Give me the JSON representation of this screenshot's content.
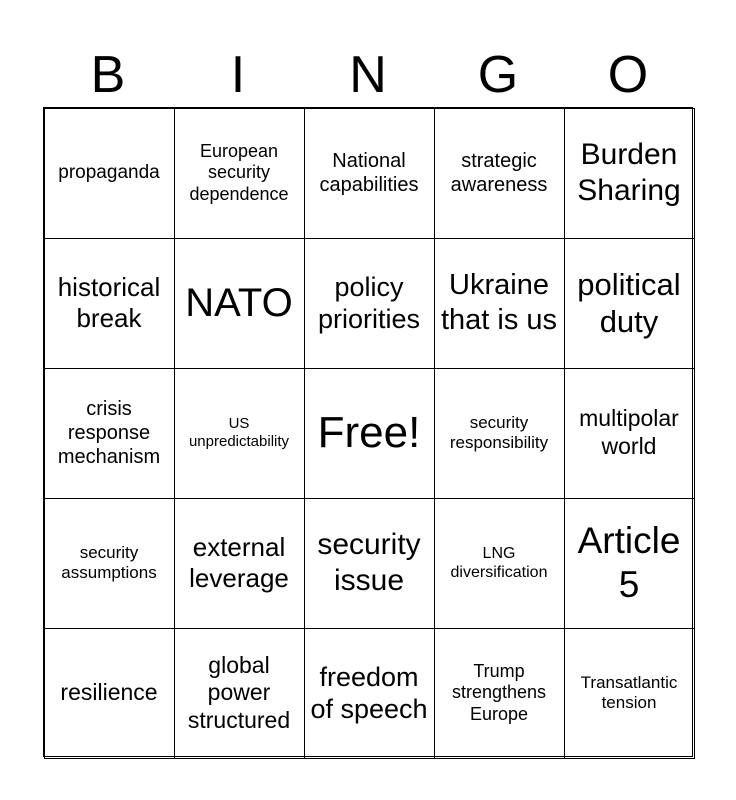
{
  "header": [
    "B",
    "I",
    "N",
    "G",
    "O"
  ],
  "cells": [
    "propaganda",
    "European security dependence",
    "National capabilities",
    "strategic awareness",
    "Burden Sharing",
    "historical break",
    "NATO",
    "policy priorities",
    "Ukraine that is us",
    "political duty",
    "crisis response mechanism",
    "US unpredictability",
    "Free!",
    "security responsibility",
    "multipolar world",
    "security assumptions",
    "external leverage",
    "security issue",
    "LNG diversification",
    "Article 5",
    "resilience",
    "global power structured",
    "freedom of speech",
    "Trump strengthens Europe",
    "Transatlantic tension"
  ]
}
